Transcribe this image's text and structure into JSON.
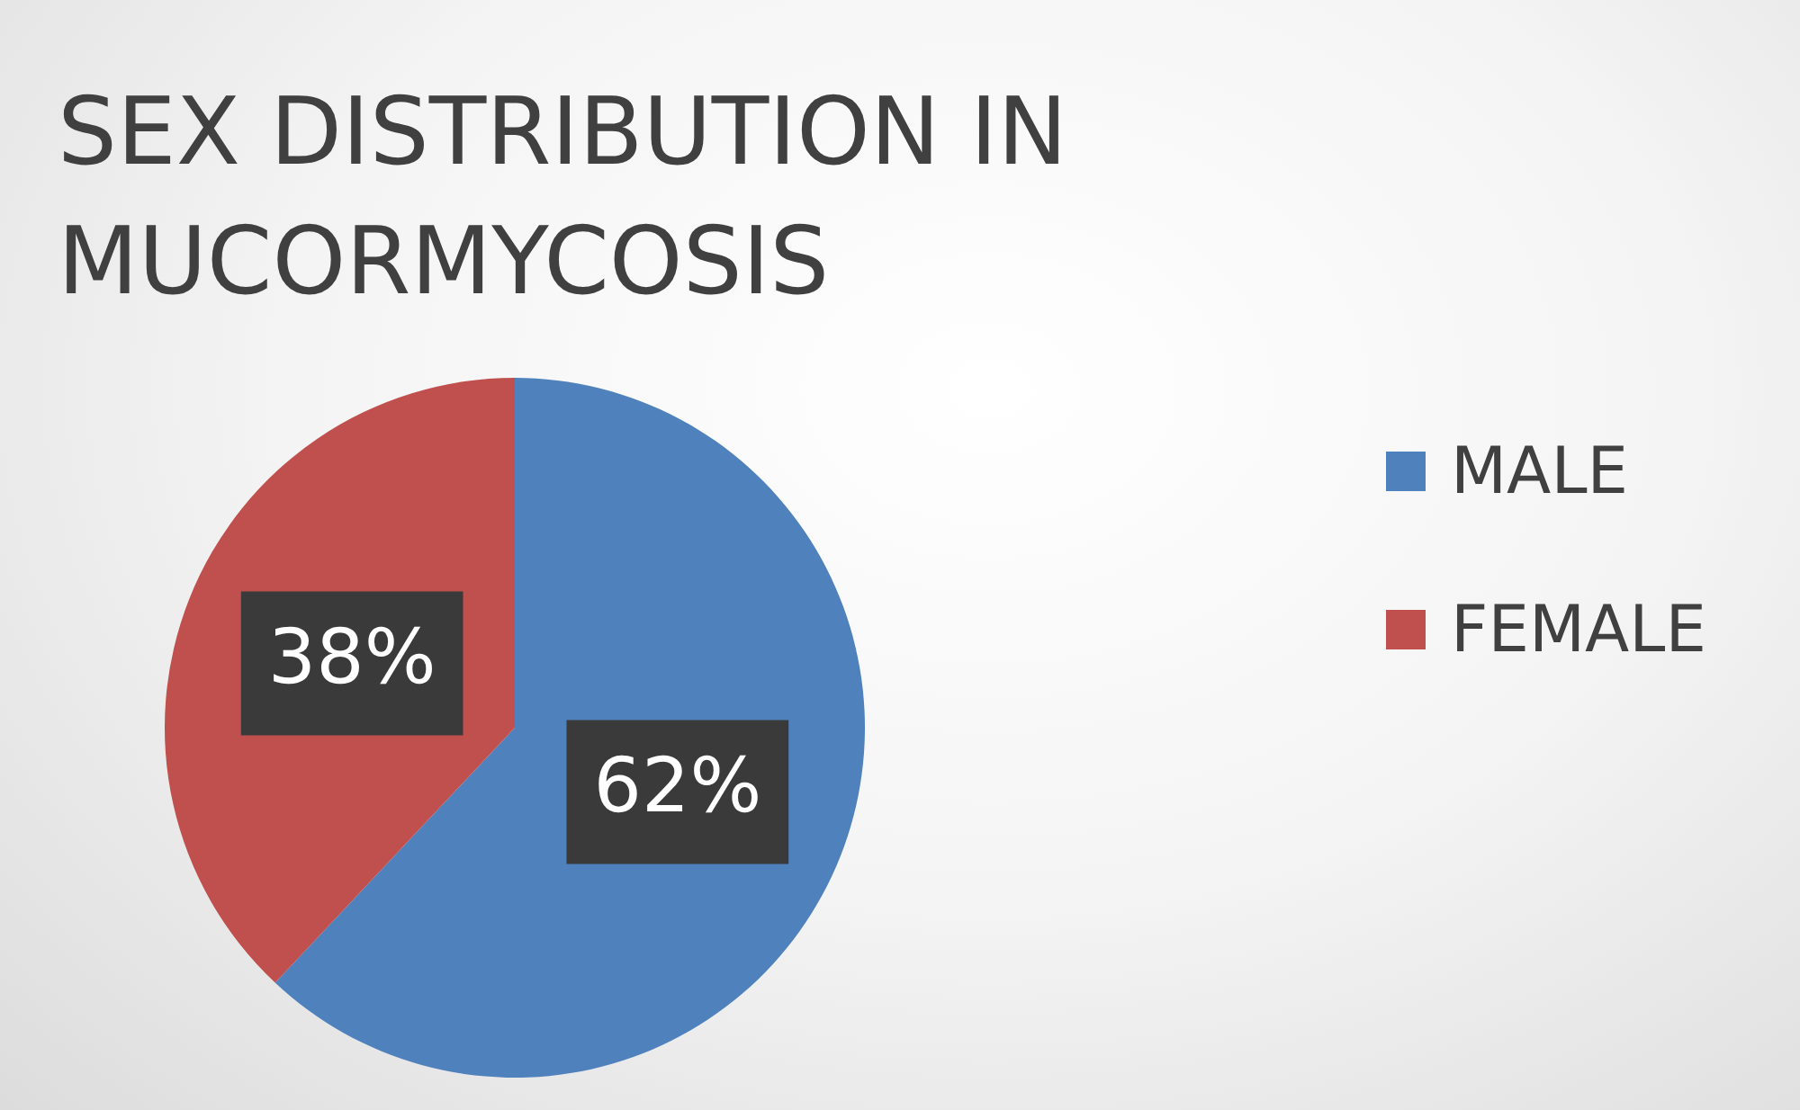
{
  "chart_data": {
    "type": "pie",
    "title": "SEX DISTRIBUTION IN MUCORMYCOSIS",
    "categories": [
      "MALE",
      "FEMALE"
    ],
    "values": [
      62,
      38
    ],
    "colors": [
      "#4f81bd",
      "#c0504d"
    ],
    "value_labels": [
      "62%",
      "38%"
    ],
    "legend": "right"
  }
}
